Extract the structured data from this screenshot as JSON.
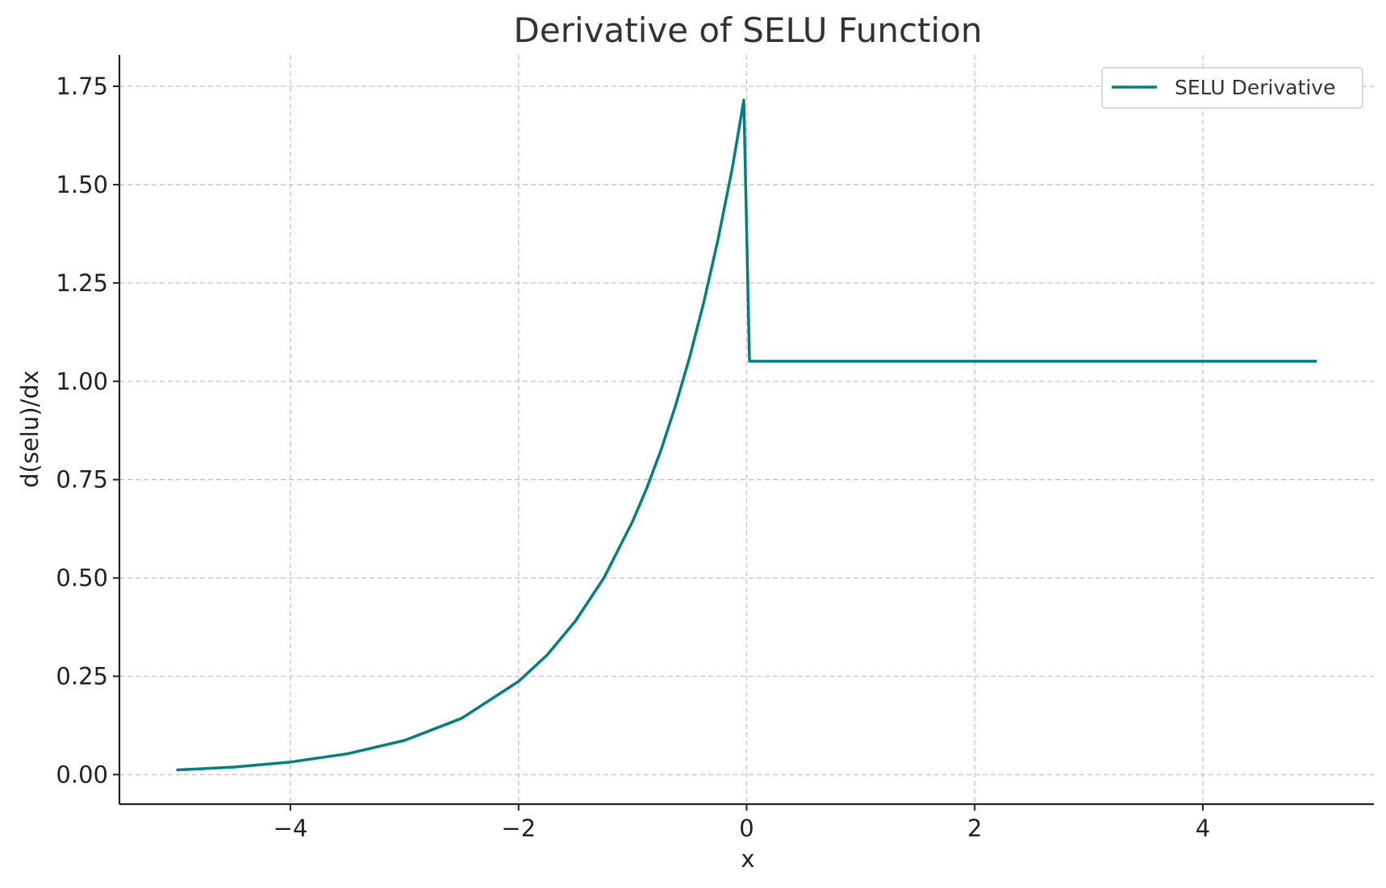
{
  "chart_data": {
    "type": "line",
    "title": "Derivative of SELU Function",
    "xlabel": "x",
    "ylabel": "d(selu)/dx",
    "xlim": [
      -5.5,
      5.5
    ],
    "ylim": [
      -0.075,
      1.83
    ],
    "xticks": [
      -4,
      -2,
      0,
      2,
      4
    ],
    "xtick_labels": [
      "−4",
      "−2",
      "0",
      "2",
      "4"
    ],
    "yticks": [
      0,
      0.25,
      0.5,
      0.75,
      1.0,
      1.25,
      1.5,
      1.75
    ],
    "ytick_labels": [
      "0.00",
      "0.25",
      "0.50",
      "0.75",
      "1.00",
      "1.25",
      "1.50",
      "1.75"
    ],
    "grid": true,
    "legend_position": "top-right",
    "series": [
      {
        "name": "SELU Derivative",
        "color": "#008080",
        "x": [
          -5.0,
          -4.5,
          -4.0,
          -3.5,
          -3.0,
          -2.5,
          -2.0,
          -1.75,
          -1.5,
          -1.25,
          -1.0,
          -0.875,
          -0.75,
          -0.625,
          -0.5,
          -0.375,
          -0.25,
          -0.125,
          -0.025,
          0.025,
          0.5,
          1.0,
          2.0,
          3.0,
          4.0,
          5.0
        ],
        "y": [
          0.012,
          0.019,
          0.032,
          0.053,
          0.087,
          0.143,
          0.237,
          0.304,
          0.391,
          0.501,
          0.644,
          0.729,
          0.826,
          0.937,
          1.061,
          1.202,
          1.362,
          1.543,
          1.715,
          1.051,
          1.051,
          1.051,
          1.051,
          1.051,
          1.051,
          1.051
        ]
      }
    ]
  }
}
